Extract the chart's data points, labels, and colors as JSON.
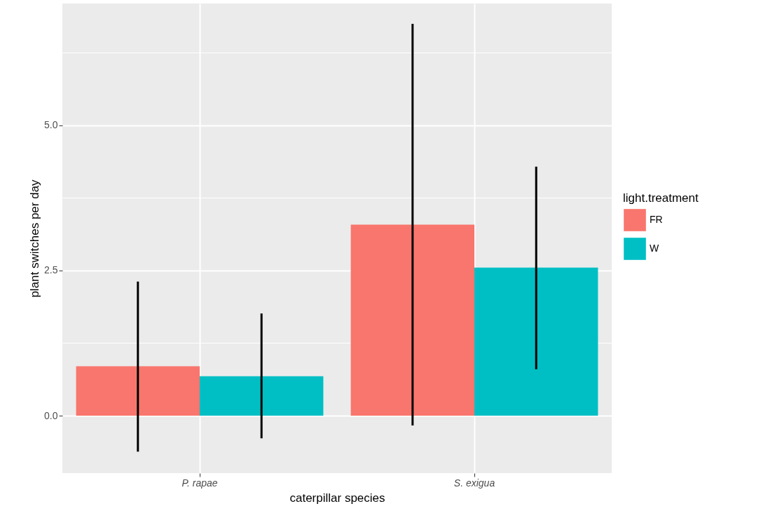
{
  "chart_data": {
    "type": "bar",
    "xlabel": "caterpillar species",
    "ylabel": "plant switches per day",
    "legend_title": "light.treatment",
    "categories": [
      "P. rapae",
      "S. exigua"
    ],
    "series": [
      {
        "name": "FR",
        "color": "#f8766d",
        "values": [
          0.85,
          3.29
        ],
        "errors": [
          [
            -0.62,
            2.31
          ],
          [
            -0.17,
            6.75
          ]
        ]
      },
      {
        "name": "W",
        "color": "#00bfc4",
        "values": [
          0.68,
          2.55
        ],
        "errors": [
          [
            -0.39,
            1.76
          ],
          [
            0.8,
            4.29
          ]
        ]
      }
    ],
    "ylim": [
      -0.99,
      7.1
    ],
    "yticks": [
      {
        "value": 0,
        "label": "0.0"
      },
      {
        "value": 1.25,
        "label": null
      },
      {
        "value": 2.5,
        "label": "2.5"
      },
      {
        "value": 3.75,
        "label": null
      },
      {
        "value": 5,
        "label": "5.0"
      },
      {
        "value": 6.25,
        "label": null
      }
    ],
    "grid": true,
    "legend": "right"
  }
}
